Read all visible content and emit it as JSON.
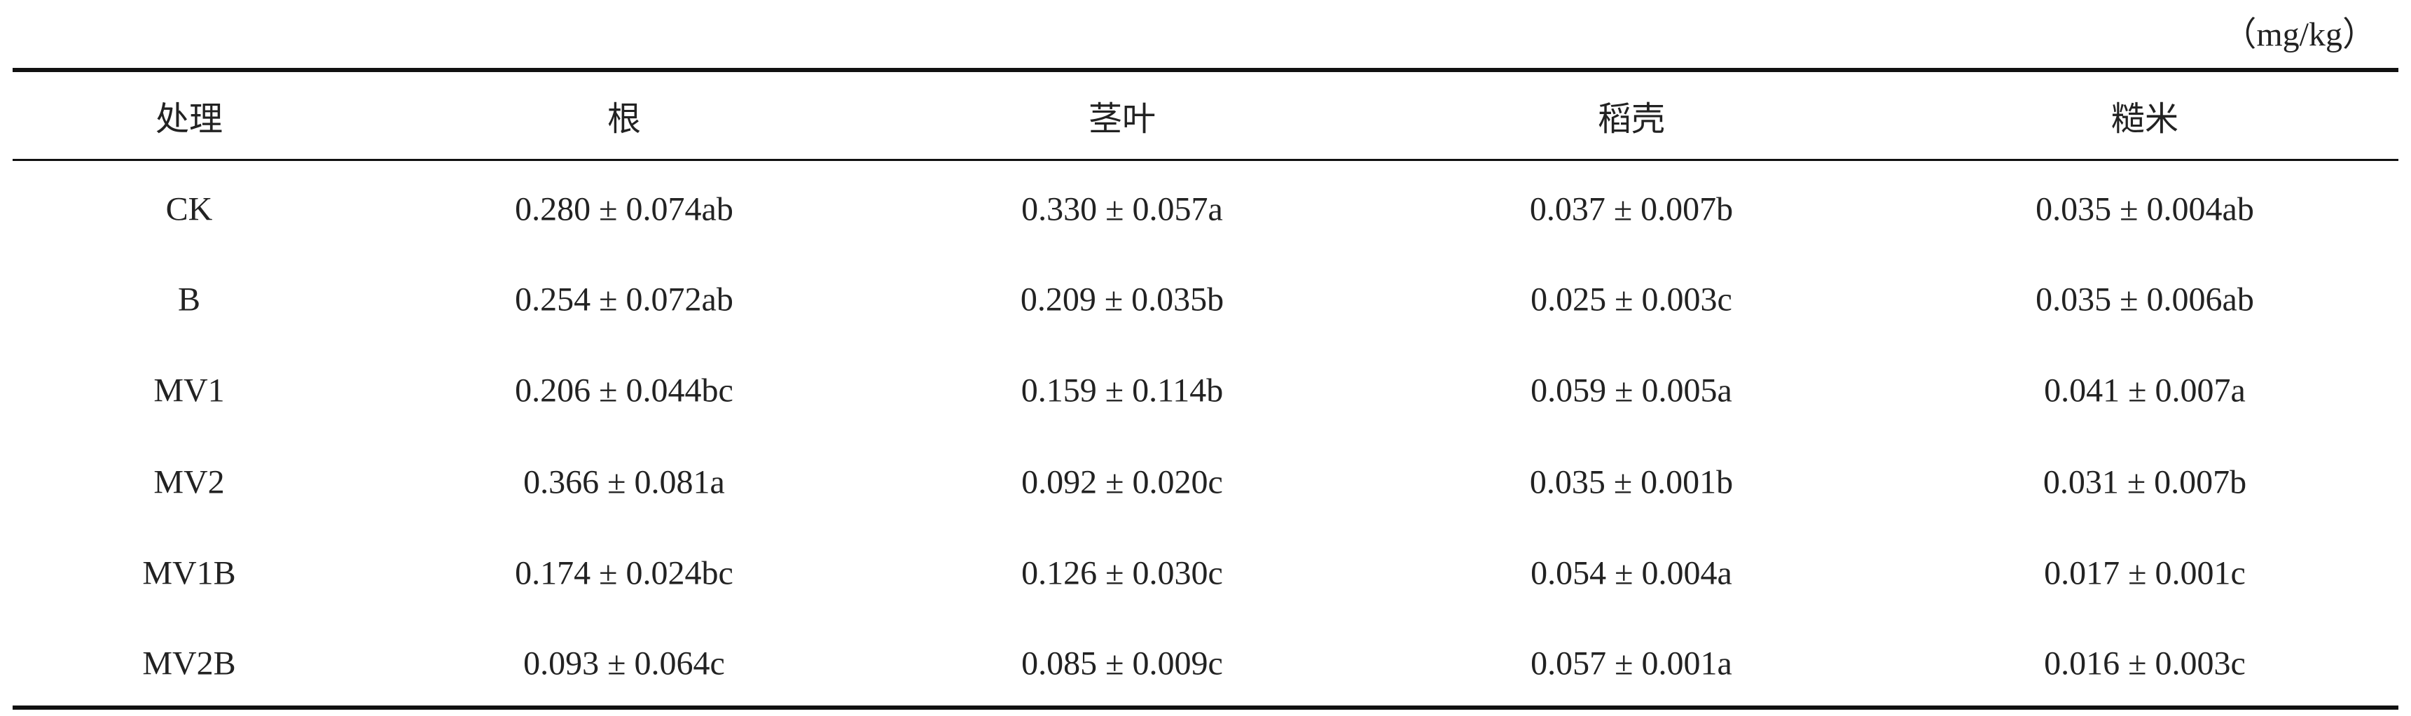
{
  "table": {
    "unit": "（mg/kg）",
    "header": [
      "处理",
      "根",
      "茎叶",
      "稻壳",
      "糙米"
    ],
    "rows": [
      [
        "CK",
        "0.280 ± 0.074ab",
        "0.330 ± 0.057a",
        "0.037 ± 0.007b",
        "0.035 ± 0.004ab"
      ],
      [
        "B",
        "0.254 ± 0.072ab",
        "0.209 ± 0.035b",
        "0.025 ± 0.003c",
        "0.035 ± 0.006ab"
      ],
      [
        "MV1",
        "0.206 ± 0.044bc",
        "0.159 ± 0.114b",
        "0.059 ± 0.005a",
        "0.041 ± 0.007a"
      ],
      [
        "MV2",
        "0.366 ± 0.081a",
        "0.092 ± 0.020c",
        "0.035 ± 0.001b",
        "0.031 ± 0.007b"
      ],
      [
        "MV1B",
        "0.174 ± 0.024bc",
        "0.126 ± 0.030c",
        "0.054 ± 0.004a",
        "0.017 ± 0.001c"
      ],
      [
        "MV2B",
        "0.093 ± 0.064c",
        "0.085 ± 0.009c",
        "0.057 ± 0.001a",
        "0.016 ± 0.003c"
      ]
    ]
  }
}
